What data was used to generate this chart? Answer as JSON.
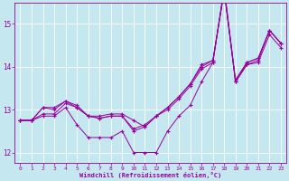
{
  "xlabel": "Windchill (Refroidissement éolien,°C)",
  "background_color": "#c5e8f0",
  "line_color": "#990099",
  "grid_color": "#b8dde8",
  "xlim": [
    -0.5,
    23.5
  ],
  "ylim": [
    11.75,
    15.5
  ],
  "yticks": [
    12,
    13,
    14,
    15
  ],
  "xticks": [
    0,
    1,
    2,
    3,
    4,
    5,
    6,
    7,
    8,
    9,
    10,
    11,
    12,
    13,
    14,
    15,
    16,
    17,
    18,
    19,
    20,
    21,
    22,
    23
  ],
  "series": [
    [
      12.75,
      12.75,
      12.9,
      12.9,
      13.15,
      13.05,
      12.85,
      12.85,
      12.9,
      12.9,
      12.75,
      12.6,
      12.85,
      13.05,
      13.3,
      13.6,
      14.05,
      14.15,
      15.75,
      13.65,
      14.1,
      14.2,
      14.85,
      14.55
    ],
    [
      12.75,
      12.75,
      13.05,
      13.0,
      13.2,
      13.1,
      12.85,
      12.8,
      12.85,
      12.85,
      12.5,
      12.6,
      12.85,
      13.0,
      13.25,
      13.55,
      13.95,
      14.1,
      15.8,
      13.65,
      14.05,
      14.15,
      14.85,
      14.55
    ],
    [
      12.75,
      12.75,
      13.05,
      13.05,
      13.2,
      13.05,
      12.85,
      12.8,
      12.85,
      12.85,
      12.55,
      12.65,
      12.85,
      13.05,
      13.3,
      13.6,
      14.0,
      14.15,
      15.8,
      13.7,
      14.1,
      14.2,
      14.85,
      14.55
    ],
    [
      12.75,
      12.75,
      12.85,
      12.85,
      13.05,
      12.65,
      12.35,
      12.35,
      12.35,
      12.5,
      12.0,
      12.0,
      12.0,
      12.5,
      12.85,
      13.1,
      13.65,
      14.1,
      15.85,
      13.65,
      14.05,
      14.1,
      14.75,
      14.45
    ]
  ]
}
